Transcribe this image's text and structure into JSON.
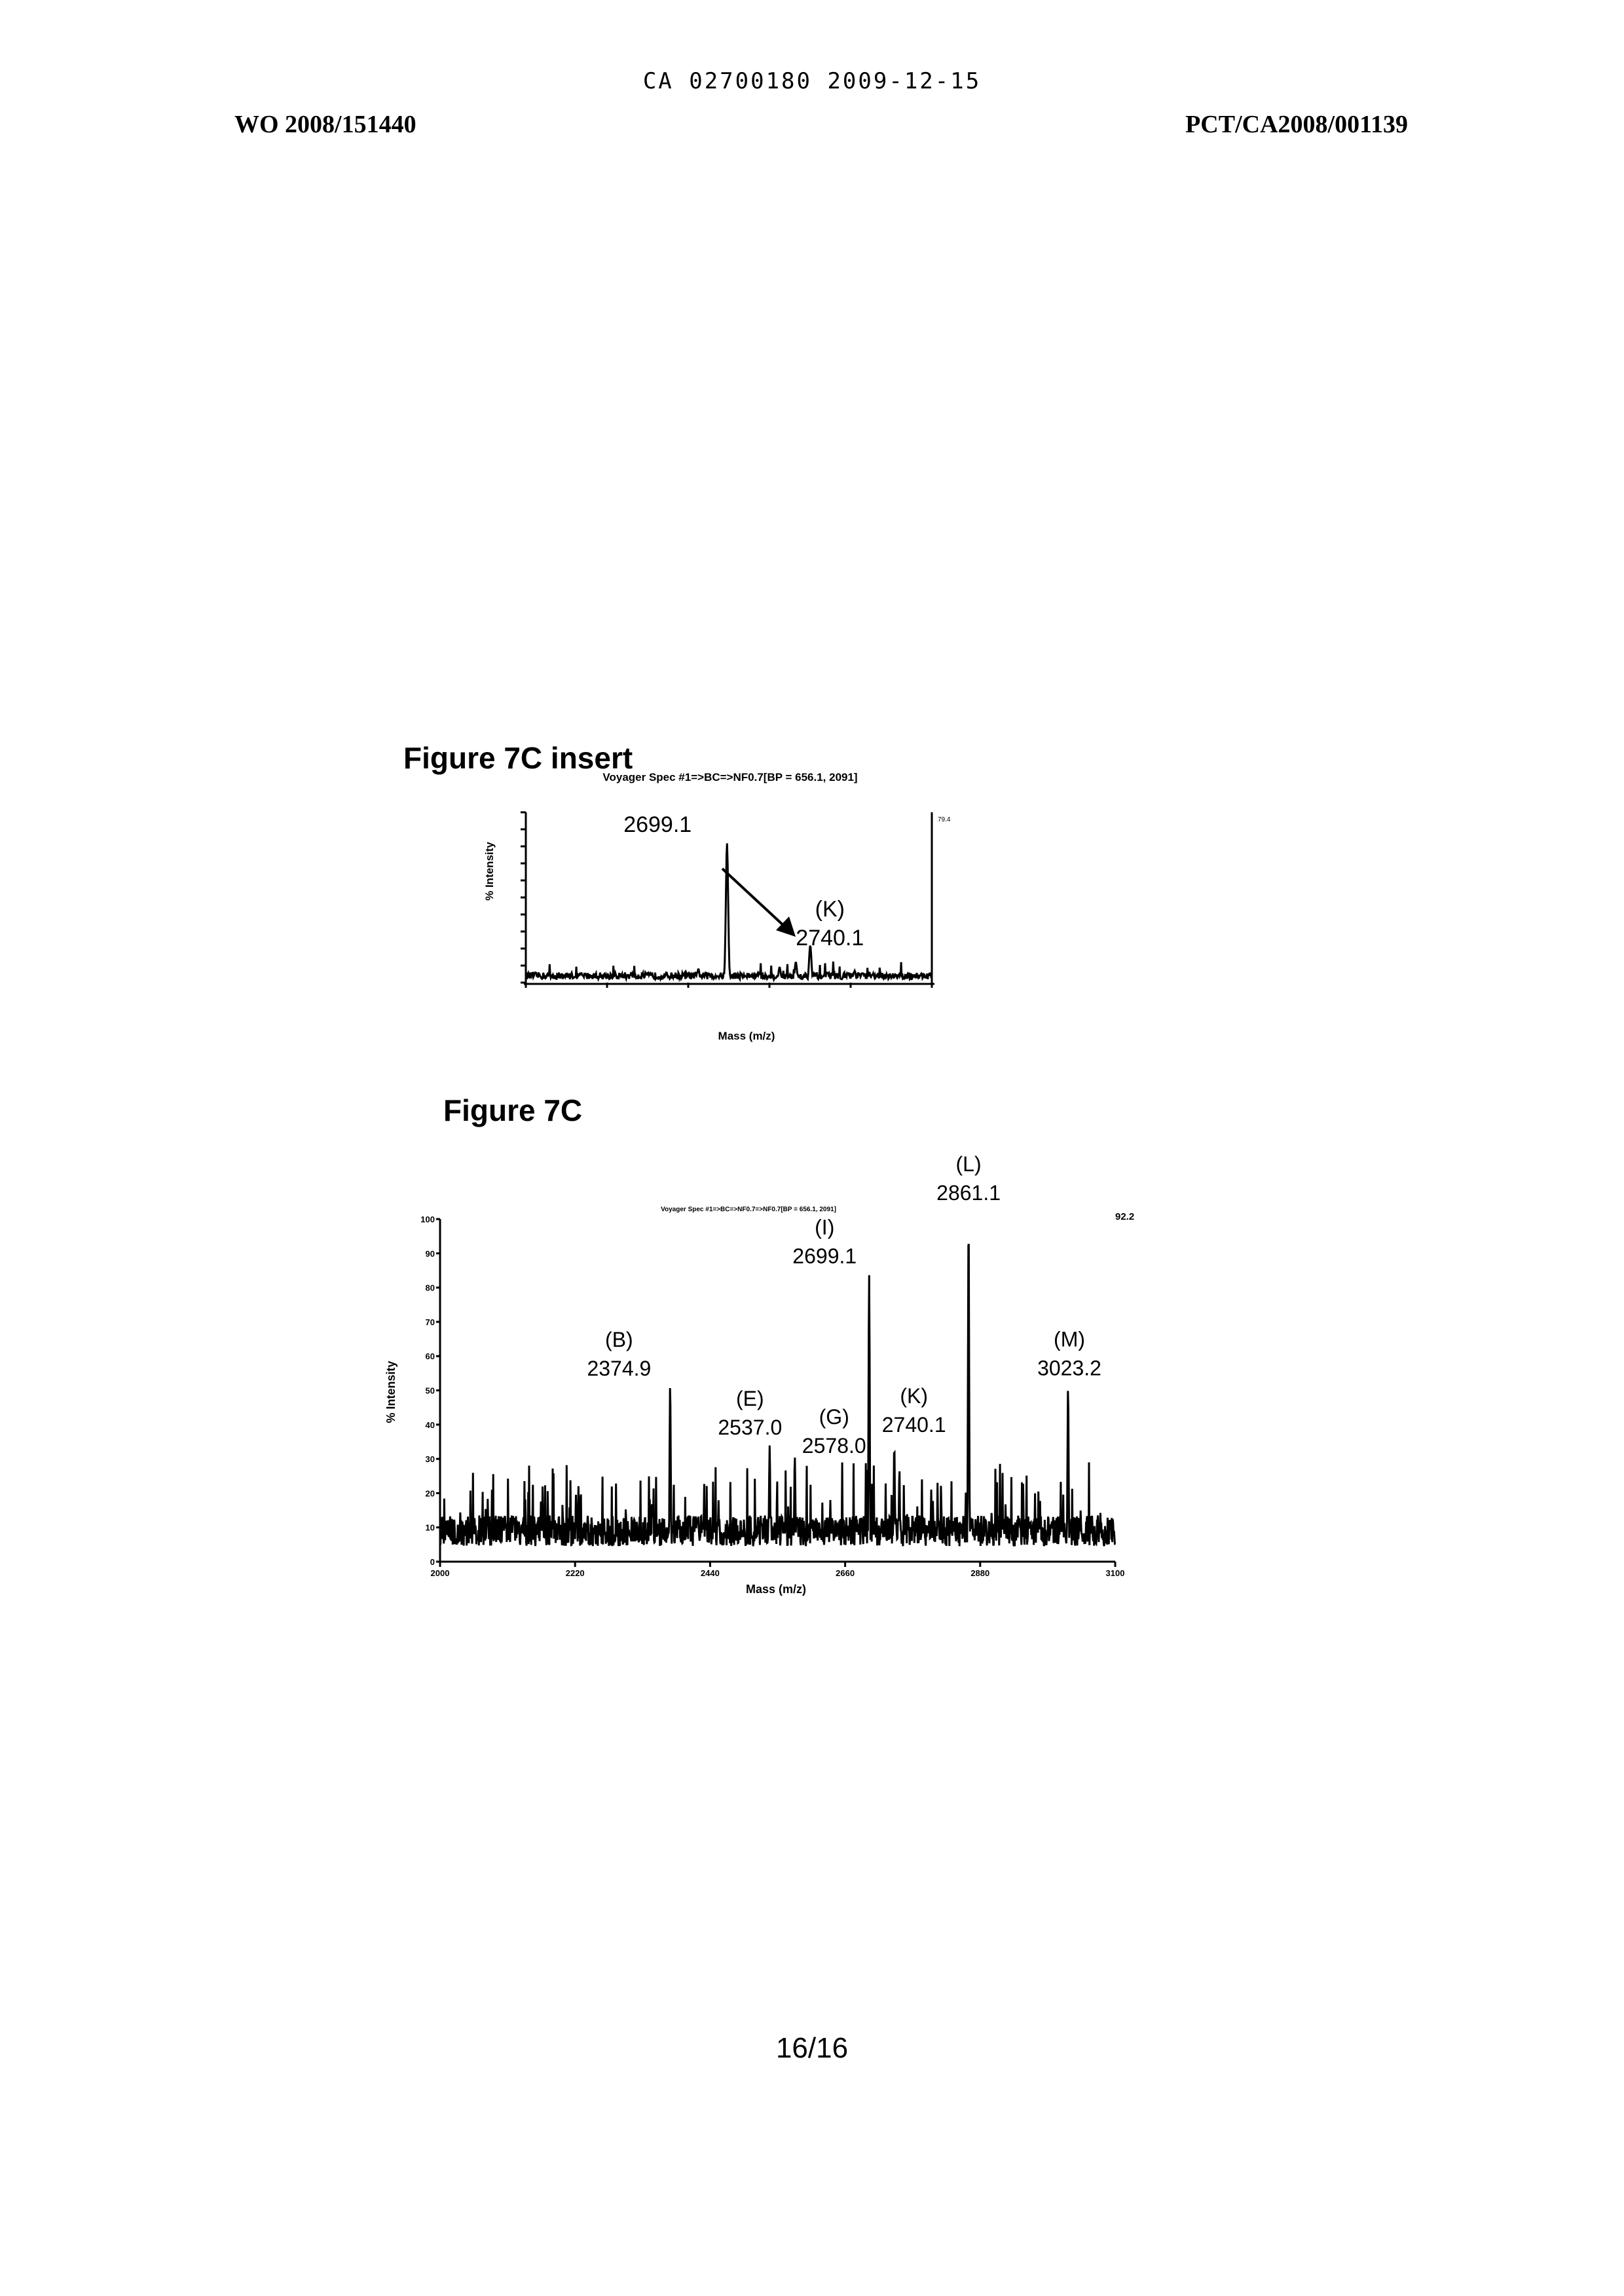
{
  "header": {
    "stamp": "CA 02700180 2009-12-15",
    "pub_number": "WO 2008/151440",
    "app_number": "PCT/CA2008/001139"
  },
  "figures": {
    "insert_title": "Figure 7C insert",
    "main_title": "Figure 7C"
  },
  "page_number": "16/16",
  "colors": {
    "ink": "#000000",
    "paper": "#ffffff"
  },
  "chart_data": [
    {
      "type": "line",
      "title": "Voyager Spec #1=>BC=>NF0.7[BP = 656.1, 2091]",
      "xlabel": "Mass (m/z)",
      "ylabel": "% Intensity",
      "xlim": [
        2600,
        2800
      ],
      "ylim": [
        0,
        100
      ],
      "top_right_value": "79.4",
      "peaks": [
        {
          "x": 2699.1,
          "y": 82,
          "label": "2699.1",
          "letter": ""
        },
        {
          "x": 2740.1,
          "y": 22,
          "label": "2740.1",
          "letter": "(K)"
        },
        {
          "x": 2733.0,
          "y": 12,
          "label": "",
          "letter": ""
        },
        {
          "x": 2725.0,
          "y": 9,
          "label": "",
          "letter": ""
        },
        {
          "x": 2685.0,
          "y": 8,
          "label": "",
          "letter": ""
        },
        {
          "x": 2762.0,
          "y": 7,
          "label": "",
          "letter": ""
        },
        {
          "x": 2715.0,
          "y": 6,
          "label": "",
          "letter": ""
        }
      ],
      "noise_level": 4,
      "grid": false
    },
    {
      "type": "line",
      "title": "Voyager Spec #1=>BC=>NF0.7=>NF0.7[BP = 656.1, 2091]",
      "xlabel": "Mass (m/z)",
      "ylabel": "% Intensity",
      "xlim": [
        2000,
        3100
      ],
      "ylim": [
        0,
        100
      ],
      "x_ticks": [
        "2000",
        "2220",
        "2440",
        "2660",
        "2880",
        "3100"
      ],
      "y_ticks": [
        "0",
        "10",
        "20",
        "30",
        "40",
        "50",
        "60",
        "70",
        "80",
        "90",
        "100"
      ],
      "top_right_value": "92.2",
      "peaks": [
        {
          "x": 2374.9,
          "y": 52,
          "label": "2374.9",
          "letter": "(B)"
        },
        {
          "x": 2537.0,
          "y": 34,
          "label": "2537.0",
          "letter": "(E)"
        },
        {
          "x": 2578.0,
          "y": 31,
          "label": "2578.0",
          "letter": "(G)"
        },
        {
          "x": 2699.1,
          "y": 84,
          "label": "2699.1",
          "letter": "(I)"
        },
        {
          "x": 2740.1,
          "y": 34,
          "label": "2740.1",
          "letter": "(K)"
        },
        {
          "x": 2861.1,
          "y": 99,
          "label": "2861.1",
          "letter": "(L)"
        },
        {
          "x": 3023.2,
          "y": 51,
          "label": "3023.2",
          "letter": "(M)"
        }
      ],
      "noise_level": 9,
      "grid": false
    }
  ]
}
